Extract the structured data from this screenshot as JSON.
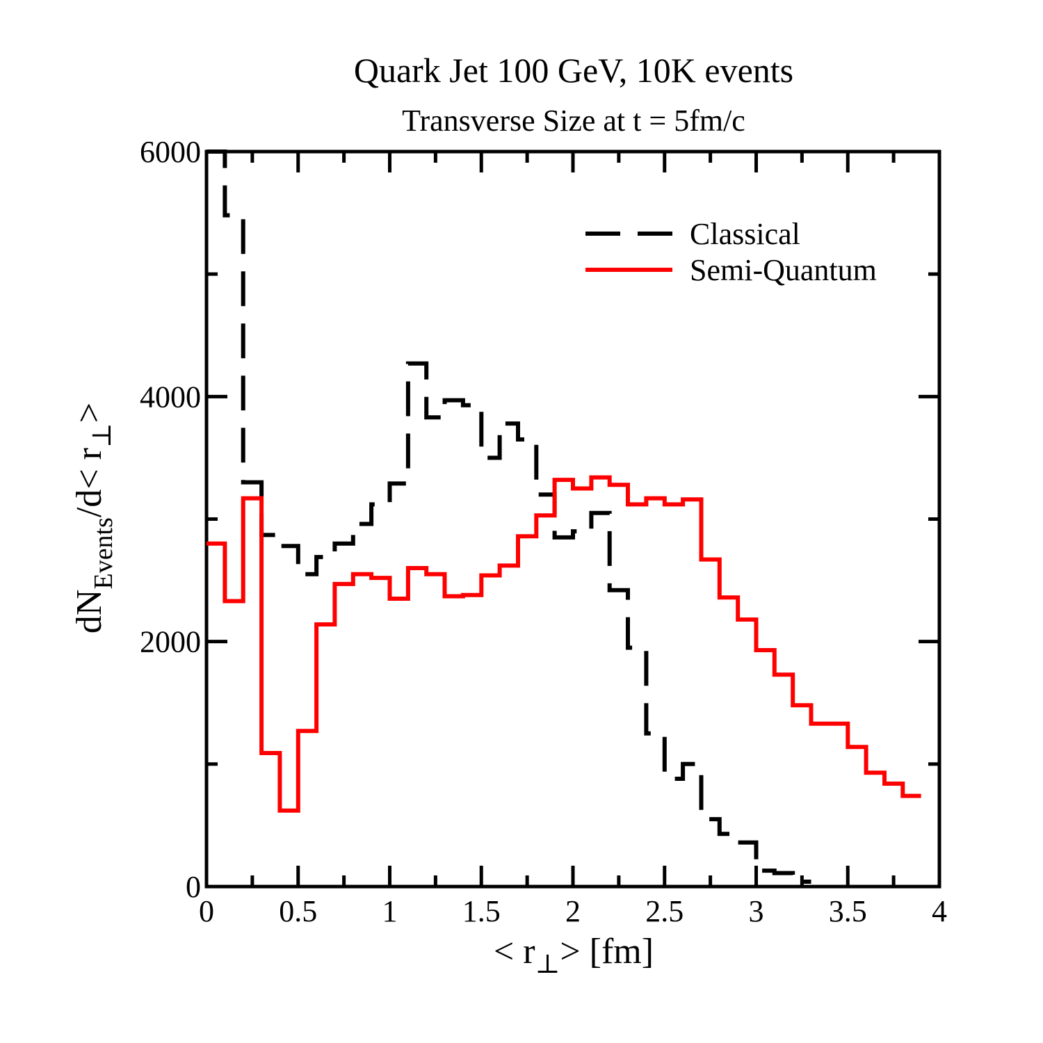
{
  "chart_data": {
    "type": "line",
    "step": true,
    "title": "Quark Jet 100 GeV, 10K events",
    "subtitle": "Transverse Size at t = 5fm/c",
    "xlabel": {
      "pre": "< r",
      "sub": "⊥",
      "post": "> [fm]"
    },
    "ylabel": {
      "pre": "dN",
      "sub": "Events",
      "mid": "/d< r",
      "sub2": "⊥",
      "post": ">"
    },
    "xlim": [
      0,
      4
    ],
    "ylim": [
      0,
      6000
    ],
    "xticks": [
      0,
      0.5,
      1,
      1.5,
      2,
      2.5,
      3,
      3.5,
      4
    ],
    "xtick_labels": [
      "0",
      "0.5",
      "1",
      "1.5",
      "2",
      "2.5",
      "3",
      "3.5",
      "4"
    ],
    "yticks": [
      0,
      2000,
      4000,
      6000
    ],
    "ytick_labels": [
      "0",
      "2000",
      "4000",
      "6000"
    ],
    "y_minor_ticks": [
      1000,
      3000,
      5000
    ],
    "x_minor_ticks": [
      0.25,
      0.75,
      1.25,
      1.75,
      2.25,
      2.75,
      3.25,
      3.75
    ],
    "legend_position": "top-right",
    "bin_edges": [
      0,
      0.1,
      0.2,
      0.3,
      0.4,
      0.5,
      0.6,
      0.7,
      0.8,
      0.9,
      1.0,
      1.1,
      1.2,
      1.3,
      1.4,
      1.5,
      1.6,
      1.7,
      1.8,
      1.9,
      2.0,
      2.1,
      2.2,
      2.3,
      2.4,
      2.5,
      2.6,
      2.7,
      2.8,
      2.9,
      3.0,
      3.1,
      3.2,
      3.3,
      3.4,
      3.5,
      3.6,
      3.7,
      3.8,
      3.9
    ],
    "series": [
      {
        "name": "Classical",
        "color": "#000000",
        "dashed": true,
        "values": [
          6000,
          5480,
          3300,
          2870,
          2780,
          2550,
          2690,
          2800,
          2960,
          3120,
          3290,
          4270,
          3830,
          3970,
          3930,
          3500,
          3780,
          3650,
          3200,
          2850,
          2900,
          3050,
          2420,
          1950,
          1250,
          880,
          1000,
          550,
          430,
          360,
          130,
          110,
          40
        ]
      },
      {
        "name": "Semi-Quantum",
        "color": "#ff0000",
        "dashed": false,
        "values": [
          2800,
          2330,
          3170,
          1090,
          620,
          1270,
          2140,
          2470,
          2550,
          2520,
          2350,
          2600,
          2550,
          2370,
          2380,
          2540,
          2620,
          2860,
          3030,
          3320,
          3250,
          3340,
          3280,
          3120,
          3170,
          3120,
          3160,
          2670,
          2360,
          2180,
          1930,
          1730,
          1480,
          1330,
          1330,
          1140,
          930,
          840,
          740
        ]
      }
    ]
  }
}
